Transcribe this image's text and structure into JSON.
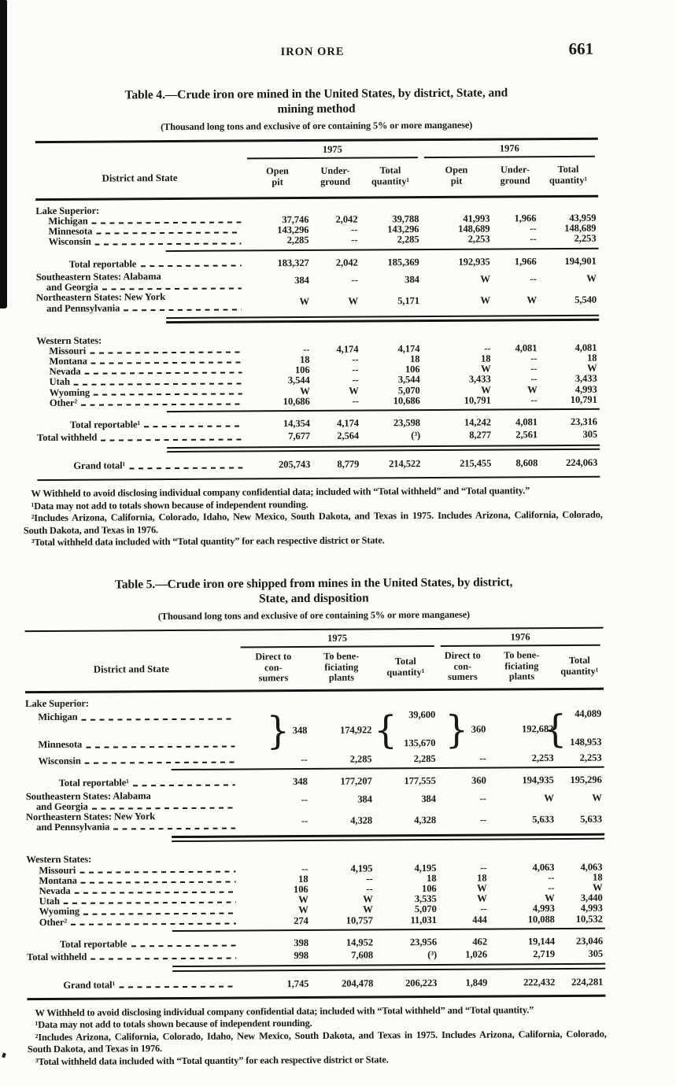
{
  "page": {
    "header": "IRON ORE",
    "page_number": "661"
  },
  "tables": [
    {
      "title": "Table 4.—Crude iron ore mined in the United States, by district, State, and\nmining method",
      "subtitle": "(Thousand long tons and exclusive of ore containing 5% or more manganese)",
      "stub_header": "District and State",
      "year_groups": [
        "1975",
        "1976"
      ],
      "columns": [
        "Open\npit",
        "Under-\nground",
        "Total\nquantity¹",
        "Open\npit",
        "Under-\nground",
        "Total\nquantity¹"
      ],
      "rows": [
        {
          "type": "group",
          "label": "Lake Superior:"
        },
        {
          "type": "state",
          "label": "Michigan",
          "values": [
            "37,746",
            "2,042",
            "39,788",
            "41,993",
            "1,966",
            "43,959"
          ]
        },
        {
          "type": "state",
          "label": "Minnesota",
          "values": [
            "143,296",
            "--",
            "143,296",
            "148,689",
            "--",
            "148,689"
          ]
        },
        {
          "type": "state",
          "label": "Wisconsin",
          "values": [
            "2,285",
            "--",
            "2,285",
            "2,253",
            "--",
            "2,253"
          ],
          "rule": "single"
        },
        {
          "type": "total",
          "label": "Total reportable",
          "values": [
            "183,327",
            "2,042",
            "185,369",
            "192,935",
            "1,966",
            "194,901"
          ]
        },
        {
          "type": "district2",
          "label": "Southeastern States: Alabama",
          "label2": "and Georgia",
          "values": [
            "384",
            "--",
            "384",
            "W",
            "--",
            "W"
          ]
        },
        {
          "type": "district2",
          "label": "Northeastern States: New York",
          "label2": "and Pennsylvania",
          "values": [
            "W",
            "W",
            "5,171",
            "W",
            "W",
            "5,540"
          ],
          "rule": "double"
        },
        {
          "type": "group",
          "label": "Western States:",
          "gap_before": true
        },
        {
          "type": "state",
          "label": "Missouri",
          "values": [
            "--",
            "4,174",
            "4,174",
            "--",
            "4,081",
            "4,081"
          ]
        },
        {
          "type": "state",
          "label": "Montana",
          "values": [
            "18",
            "--",
            "18",
            "18",
            "--",
            "18"
          ]
        },
        {
          "type": "state",
          "label": "Nevada",
          "values": [
            "106",
            "--",
            "106",
            "W",
            "--",
            "W"
          ]
        },
        {
          "type": "state",
          "label": "Utah",
          "values": [
            "3,544",
            "--",
            "3,544",
            "3,433",
            "--",
            "3,433"
          ]
        },
        {
          "type": "state",
          "label": "Wyoming",
          "values": [
            "W",
            "W",
            "5,070",
            "W",
            "W",
            "4,993"
          ]
        },
        {
          "type": "state",
          "label": "Other²",
          "values": [
            "10,686",
            "--",
            "10,686",
            "10,791",
            "--",
            "10,791"
          ],
          "rule": "single"
        },
        {
          "type": "total",
          "label": "Total reportable¹",
          "values": [
            "14,354",
            "4,174",
            "23,598",
            "14,242",
            "4,081",
            "23,316"
          ]
        },
        {
          "type": "flush",
          "label": "Total withheld",
          "values": [
            "7,677",
            "2,564",
            "(³)",
            "8,277",
            "2,561",
            "305"
          ],
          "rule": "double"
        },
        {
          "type": "grand",
          "label": "Grand total¹",
          "values": [
            "205,743",
            "8,779",
            "214,522",
            "215,455",
            "8,608",
            "224,063"
          ],
          "rule": "bottom"
        }
      ],
      "footnotes": [
        "W Withheld to avoid disclosing individual company confidential data; included with “Total withheld” and “Total quantity.”",
        "¹Data may not add to totals shown because of independent rounding.",
        "²Includes Arizona, California, Colorado, Idaho, New Mexico, South Dakota, and Texas in 1975. Includes Arizona, California, Colorado, South Dakota, and Texas in 1976.",
        "³Total withheld data included with “Total quantity” for each respective district or State."
      ]
    },
    {
      "title": "Table 5.—Crude iron ore shipped from mines in the United States, by district,\nState, and disposition",
      "subtitle": "(Thousand long tons and exclusive of ore containing 5% or more manganese)",
      "stub_header": "District and State",
      "year_groups": [
        "1975",
        "1976"
      ],
      "columns": [
        "Direct to\ncon-\nsumers",
        "To bene-\nficiating\nplants",
        "Total\nquantity¹",
        "Direct to\ncon-\nsumers",
        "To bene-\nficiating\nplants",
        "Total\nquantity¹"
      ],
      "rows": [
        {
          "type": "group",
          "label": "Lake Superior:"
        },
        {
          "type": "brace",
          "row1_label": "Michigan",
          "row2_label": "Minnesota",
          "ds_1975": "348",
          "bene_1975": "174,922",
          "total_1975_top": "39,600",
          "total_1975_bottom": "135,670",
          "ds_1976": "360",
          "bene_1976": "192,682",
          "total_1976_top": "44,089",
          "total_1976_bottom": "148,953"
        },
        {
          "type": "state",
          "label": "Wisconsin",
          "values": [
            "--",
            "2,285",
            "2,285",
            "--",
            "2,253",
            "2,253"
          ],
          "rule": "single"
        },
        {
          "type": "total",
          "label": "Total reportable¹",
          "values": [
            "348",
            "177,207",
            "177,555",
            "360",
            "194,935",
            "195,296"
          ]
        },
        {
          "type": "district2",
          "label": "Southeastern States: Alabama",
          "label2": "and Georgia",
          "values": [
            "--",
            "384",
            "384",
            "--",
            "W",
            "W"
          ]
        },
        {
          "type": "district2",
          "label": "Northeastern States: New York",
          "label2": "and Pennsylvania",
          "values": [
            "--",
            "4,328",
            "4,328",
            "--",
            "5,633",
            "5,633"
          ],
          "rule": "double"
        },
        {
          "type": "group",
          "label": "Western States:",
          "gap_before": true
        },
        {
          "type": "state",
          "label": "Missouri",
          "values": [
            "--",
            "4,195",
            "4,195",
            "--",
            "4,063",
            "4,063"
          ]
        },
        {
          "type": "state",
          "label": "Montana",
          "values": [
            "18",
            "--",
            "18",
            "18",
            "--",
            "18"
          ]
        },
        {
          "type": "state",
          "label": "Nevada",
          "values": [
            "106",
            "--",
            "106",
            "W",
            "--",
            "W"
          ]
        },
        {
          "type": "state",
          "label": "Utah",
          "values": [
            "W",
            "W",
            "3,535",
            "W",
            "W",
            "3,440"
          ]
        },
        {
          "type": "state",
          "label": "Wyoming",
          "values": [
            "W",
            "W",
            "5,070",
            "--",
            "4,993",
            "4,993"
          ]
        },
        {
          "type": "state",
          "label": "Other²",
          "values": [
            "274",
            "10,757",
            "11,031",
            "444",
            "10,088",
            "10,532"
          ],
          "rule": "single"
        },
        {
          "type": "total",
          "label": "Total reportable",
          "values": [
            "398",
            "14,952",
            "23,956",
            "462",
            "19,144",
            "23,046"
          ]
        },
        {
          "type": "flush",
          "label": "Total withheld",
          "values": [
            "998",
            "7,608",
            "(³)",
            "1,026",
            "2,719",
            "305"
          ],
          "rule": "double"
        },
        {
          "type": "grand",
          "label": "Grand total¹",
          "values": [
            "1,745",
            "204,478",
            "206,223",
            "1,849",
            "222,432",
            "224,281"
          ],
          "rule": "bottom"
        }
      ],
      "footnotes": [
        "W Withheld to avoid disclosing individual company confidential data; included with “Total withheld” and “Total quantity.”",
        "¹Data may not add to totals shown because of independent rounding.",
        "²Includes Arizona, California, Colorado, Idaho, New Mexico, South Dakota, and Texas in 1975. Includes Arizona, California, Colorado, South Dakota, and Texas in 1976.",
        "³Total withheld data included with “Total quantity” for each respective district or State."
      ]
    }
  ]
}
